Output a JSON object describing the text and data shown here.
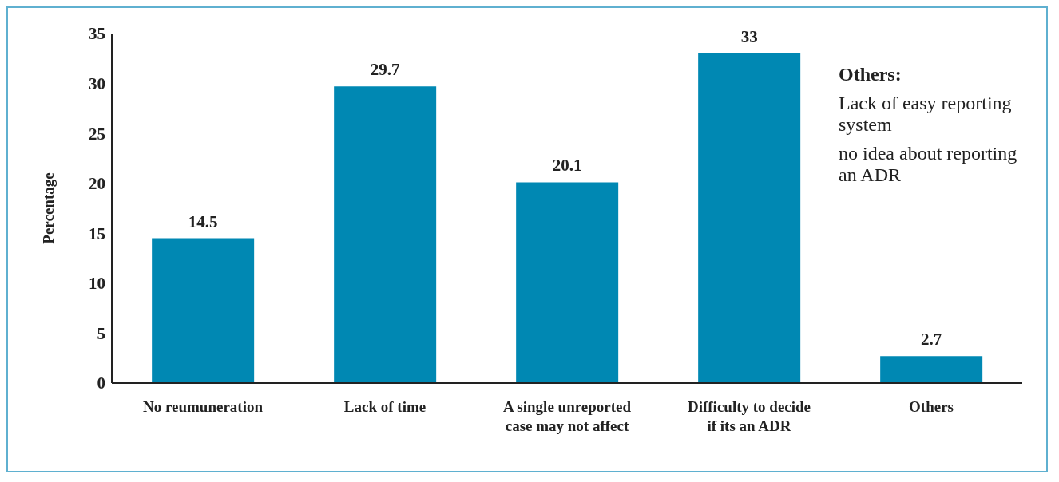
{
  "chart_data": {
    "type": "bar",
    "ylabel": "Percentage",
    "categories": [
      "No reumuneration",
      "Lack of time",
      "A single unreported case may not affect",
      "Difficulty to decide if its an ADR",
      "Others"
    ],
    "values": [
      14.5,
      29.7,
      20.1,
      33,
      2.7
    ],
    "color": "#0088b3",
    "ylim": [
      0,
      35
    ],
    "yticks": [
      0,
      5,
      10,
      15,
      20,
      25,
      30,
      35
    ],
    "data_labels": true,
    "grid": false,
    "annotations": [
      "Others:",
      "Lack of easy reporting system",
      "no idea about reporting an ADR"
    ]
  }
}
